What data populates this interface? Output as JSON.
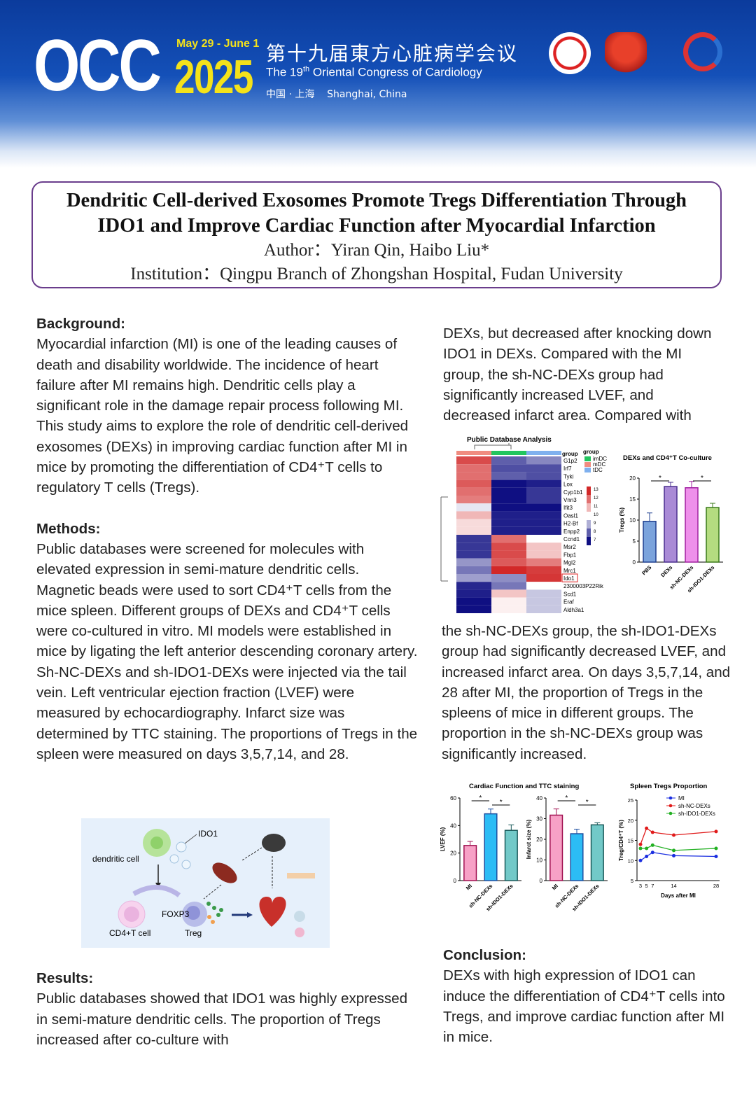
{
  "header": {
    "brand": "OCC",
    "dates": "May 29 - June 1",
    "year": "2025",
    "title_cn": "第十九届東方心脏病学会议",
    "title_en": "The 19th Oriental Congress of Cardiology",
    "location": "中国 · 上海    Shanghai, China",
    "colors": {
      "banner": "#1450b8",
      "year": "#f4e21a"
    }
  },
  "title": {
    "line1": "Dendritic Cell-derived Exosomes Promote Tregs Differentiation Through",
    "line2": "IDO1 and Improve Cardiac Function after Myocardial Infarction",
    "author": "Author：Yiran Qin, Haibo Liu*",
    "institution": "Institution：Qingpu Branch of Zhongshan Hospital, Fudan University"
  },
  "background": {
    "heading": "Background:",
    "text": "Myocardial infarction (MI) is one of the leading causes of death and disability worldwide. The incidence of heart failure after MI remains high. Dendritic cells play a significant role in the damage repair process following MI. This study aims to explore the role of dendritic cell-derived exosomes (DEXs) in improving cardiac function after MI in mice by promoting the differentiation of CD4⁺T cells to regulatory T cells (Tregs)."
  },
  "methods": {
    "heading": "Methods:",
    "text": "Public databases were screened for molecules with elevated expression in semi-mature dendritic cells. Magnetic beads were used to sort CD4⁺T cells from the mice spleen. Different groups of DEXs and CD4⁺T cells were co-cultured in vitro. MI models were established in mice by ligating the left anterior descending coronary artery. Sh-NC-DEXs and sh-IDO1-DEXs were injected via the tail vein. Left ventricular ejection fraction (LVEF) were measured by echocardiography. Infarct size was determined by TTC staining. The proportions of Tregs in the spleen were measured on days 3,5,7,14, and 28."
  },
  "schematic": {
    "labels": {
      "ido1": "IDO1",
      "dc": "dendritic cell",
      "cd4": "CD4+T cell",
      "foxp3": "FOXP3",
      "treg": "Treg"
    }
  },
  "results": {
    "heading": "Results:",
    "part1": "Public databases showed that IDO1 was highly expressed in semi-mature dendritic cells. The proportion of Tregs increased after co-culture with",
    "part2": "DEXs, but decreased after knocking down IDO1 in DEXs. Compared with the MI group, the sh-NC-DEXs group had significantly increased LVEF, and decreased infarct area. Compared with",
    "part3": "the sh-NC-DEXs group, the sh-IDO1-DEXs group had significantly decreased LVEF, and increased infarct area. On days 3,5,7,14, and 28 after MI, the proportion of Tregs in the spleens of mice in different groups. The proportion in the sh-NC-DEXs group was significantly increased."
  },
  "conclusion": {
    "heading": "Conclusion:",
    "text": "DEXs with high expression of IDO1 can induce the differentiation of CD4⁺T cells into Tregs, and improve cardiac function after MI in mice."
  },
  "chart_data": [
    {
      "type": "heatmap",
      "title": "Public Database Analysis",
      "columns": [
        "mDC",
        "imDC",
        "tDC"
      ],
      "column_colors": [
        "#f08c80",
        "#22c55e",
        "#7fb0ee"
      ],
      "legend_title": "group",
      "legend": [
        {
          "name": "imDC",
          "color": "#22c55e"
        },
        {
          "name": "mDC",
          "color": "#f08c80"
        },
        {
          "name": "tDC",
          "color": "#7fb0ee"
        }
      ],
      "color_range": [
        7,
        13
      ],
      "colorbar_ticks": [
        13,
        12,
        11,
        10,
        9,
        8,
        7
      ],
      "highlight": "Ido1",
      "rows": [
        "G1p2",
        "Irf7",
        "Tyki",
        "Lox",
        "Cyp1b1",
        "Vnn3",
        "Ifit3",
        "Oasl1",
        "H2-Bf",
        "Enpp2",
        "Ccnd1",
        "Msr2",
        "Fbp1",
        "Mgl2",
        "Mrc1",
        "Ido1",
        "2300003P22Rik",
        "Scd1",
        "Eraf",
        "Aldh3a1"
      ],
      "values": [
        [
          12.5,
          8,
          8.5
        ],
        [
          12,
          7.8,
          7.8
        ],
        [
          12,
          8,
          7.8
        ],
        [
          12.3,
          7,
          7.2
        ],
        [
          12,
          7,
          7.5
        ],
        [
          11.8,
          7,
          7.5
        ],
        [
          9.7,
          7,
          7
        ],
        [
          11,
          7.2,
          7.2
        ],
        [
          10.5,
          7.2,
          7.2
        ],
        [
          10.5,
          7.2,
          7.2
        ],
        [
          7.5,
          12,
          10
        ],
        [
          7.5,
          12.5,
          10.8
        ],
        [
          7.5,
          12.5,
          10.8
        ],
        [
          8.7,
          12.3,
          11.8
        ],
        [
          8.3,
          13.2,
          12.7
        ],
        [
          8.8,
          8.6,
          12.8
        ],
        [
          7.3,
          8.3,
          10
        ],
        [
          7.2,
          10.8,
          9.3
        ],
        [
          7,
          10.2,
          9.3
        ],
        [
          7,
          10.2,
          9.3
        ]
      ]
    },
    {
      "type": "bar",
      "title": "DEXs and CD4⁺T Co-culture",
      "ylabel": "Tregs (%)",
      "ylim": [
        0,
        20
      ],
      "yticks": [
        0,
        5,
        10,
        15,
        20
      ],
      "categories": [
        "PBS",
        "DEXs",
        "sh-NC-DEXs",
        "sh-IDO1-DEXs"
      ],
      "values": [
        9.7,
        18,
        17.7,
        13
      ],
      "errors": [
        2,
        1,
        1.5,
        1
      ],
      "colors": [
        "#7ba3dc",
        "#a98ad6",
        "#ee90ea",
        "#b4dc80"
      ],
      "edge_colors": [
        "#1f3f8f",
        "#4a2f8f",
        "#a020a0",
        "#3a7a1a"
      ],
      "significance": [
        [
          0,
          1
        ],
        [
          2,
          3
        ]
      ],
      "sig_label": "*"
    },
    {
      "type": "bar",
      "title": "Cardiac Function and TTC staining",
      "ylabel": "LVEF (%)",
      "ylim": [
        0,
        60
      ],
      "yticks": [
        0,
        20,
        40,
        60
      ],
      "categories": [
        "MI",
        "sh-NC-DEXs",
        "sh-IDO1-DEXs"
      ],
      "values": [
        25.5,
        48.5,
        36.5
      ],
      "errors": [
        3,
        3.5,
        4
      ],
      "colors": [
        "#f7a1c6",
        "#2cbcf5",
        "#72c9c8"
      ],
      "edge_colors": [
        "#a01050",
        "#1c4fa0",
        "#1a5a5a"
      ],
      "significance": [
        [
          0,
          1
        ],
        [
          1,
          2
        ]
      ],
      "sig_label": "*"
    },
    {
      "type": "bar",
      "title": "",
      "ylabel": "Infarct size (%)",
      "ylim": [
        0,
        40
      ],
      "yticks": [
        0,
        10,
        20,
        30,
        40
      ],
      "categories": [
        "MI",
        "sh-NC-DEXs",
        "sh-IDO1-DEXs"
      ],
      "values": [
        31.7,
        22.7,
        27
      ],
      "errors": [
        3,
        2.2,
        1
      ],
      "colors": [
        "#f7a1c6",
        "#2cbcf5",
        "#72c9c8"
      ],
      "edge_colors": [
        "#a01050",
        "#1c4fa0",
        "#1a5a5a"
      ],
      "significance": [
        [
          0,
          1
        ],
        [
          1,
          2
        ]
      ],
      "sig_label": "*"
    },
    {
      "type": "line",
      "title": "Spleen Tregs Proportion",
      "xlabel": "Days after MI",
      "ylabel": "Treg/CD4⁺T (%)",
      "ylim": [
        5,
        25
      ],
      "yticks": [
        5,
        10,
        15,
        20,
        25
      ],
      "xticks": [
        3,
        5,
        7,
        14,
        28
      ],
      "x": [
        3,
        5,
        7,
        14,
        28
      ],
      "legend": "top-right",
      "series": [
        {
          "name": "MI",
          "color": "#1a2ee0",
          "marker": "circle",
          "values": [
            10,
            11,
            12,
            11.2,
            11
          ]
        },
        {
          "name": "sh-NC-DEXs",
          "color": "#e01a1a",
          "marker": "square",
          "values": [
            14,
            18,
            17,
            16.3,
            17.2
          ]
        },
        {
          "name": "sh-IDO1-DEXs",
          "color": "#22b022",
          "marker": "triangle",
          "values": [
            13,
            13,
            13.8,
            12.5,
            13
          ]
        }
      ]
    }
  ]
}
